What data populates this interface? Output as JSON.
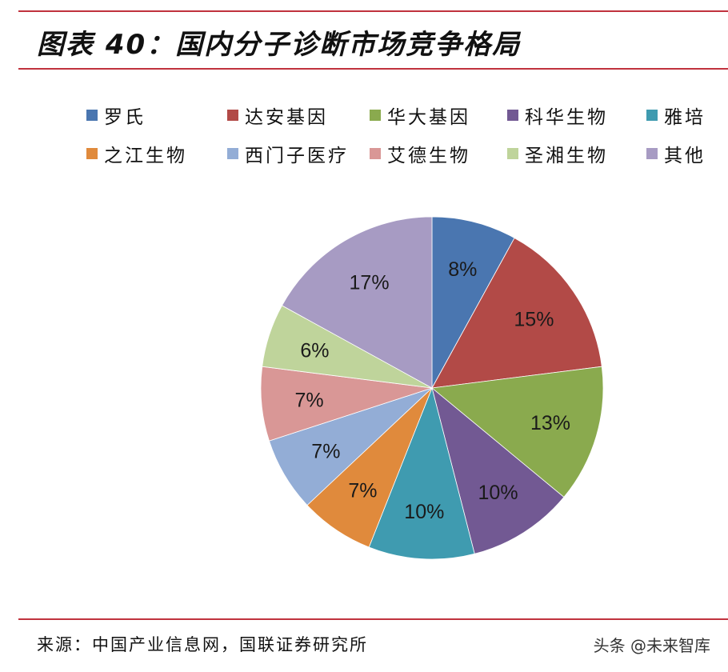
{
  "header": {
    "title": "图表 40：国内分子诊断市场竞争格局"
  },
  "legend": {
    "rows": [
      [
        {
          "label": "罗氏",
          "color": "#4a76b0"
        },
        {
          "label": "达安基因",
          "color": "#b24a47"
        },
        {
          "label": "华大基因",
          "color": "#8aaa4e"
        },
        {
          "label": "科华生物",
          "color": "#725993"
        },
        {
          "label": "雅培",
          "color": "#3f9bb0"
        }
      ],
      [
        {
          "label": "之江生物",
          "color": "#e08a3c"
        },
        {
          "label": "西门子医疗",
          "color": "#93add6"
        },
        {
          "label": "艾德生物",
          "color": "#d99796"
        },
        {
          "label": "圣湘生物",
          "color": "#bfd49b"
        },
        {
          "label": "其他",
          "color": "#a79bc3"
        }
      ]
    ]
  },
  "chart_data": {
    "type": "pie",
    "title": "国内分子诊断市场竞争格局",
    "categories": [
      "罗氏",
      "达安基因",
      "华大基因",
      "科华生物",
      "雅培",
      "之江生物",
      "西门子医疗",
      "艾德生物",
      "圣湘生物",
      "其他"
    ],
    "values": [
      8,
      15,
      13,
      10,
      10,
      7,
      7,
      7,
      6,
      17
    ],
    "labels": [
      "8%",
      "15%",
      "13%",
      "10%",
      "10%",
      "7%",
      "7%",
      "7%",
      "6%",
      "17%"
    ],
    "colors": [
      "#4a76b0",
      "#b24a47",
      "#8aaa4e",
      "#725993",
      "#3f9bb0",
      "#e08a3c",
      "#93add6",
      "#d99796",
      "#bfd49b",
      "#a79bc3"
    ],
    "unit": "%",
    "start_angle": "12 o'clock, clockwise",
    "legend_position": "top"
  },
  "footer": {
    "source": "来源：中国产业信息网，国联证券研究所",
    "watermark": "头条 @未来智库"
  }
}
